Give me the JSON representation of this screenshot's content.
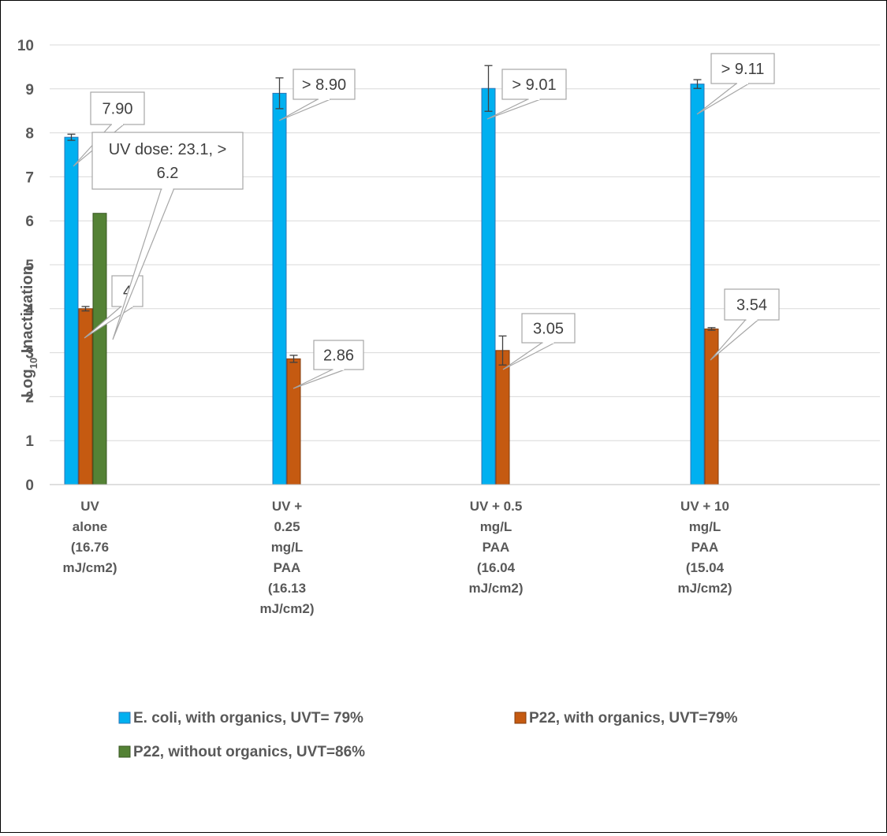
{
  "chart_data": {
    "type": "bar",
    "ylabel_prefix": "Log",
    "ylabel_sub": "10",
    "ylabel_suffix": " Inactivation",
    "ylim": [
      0,
      10
    ],
    "yticks": [
      "0",
      "1",
      "2",
      "3",
      "4",
      "5",
      "6",
      "7",
      "8",
      "9",
      "10"
    ],
    "grid": true,
    "legend_position": "bottom",
    "categories": [
      [
        "UV",
        "alone",
        "(16.76",
        "mJ/cm2)"
      ],
      [
        "UV +",
        "0.25",
        "mg/L",
        "PAA",
        "(16.13",
        "mJ/cm2)"
      ],
      [
        "UV + 0.5",
        "mg/L",
        "PAA",
        "(16.04",
        "mJ/cm2)"
      ],
      [
        "UV + 10",
        "mg/L",
        "PAA",
        "(15.04",
        "mJ/cm2)"
      ]
    ],
    "series": [
      {
        "name": "E. coli, with organics, UVT= 79%",
        "color": "#00B0F0",
        "values": [
          7.9,
          8.9,
          9.01,
          9.11
        ],
        "errors": [
          0.07,
          0.35,
          0.52,
          0.1
        ],
        "labels": [
          [
            "7.90"
          ],
          [
            "> 8.90"
          ],
          [
            "> 9.01"
          ],
          [
            "> 9.11"
          ]
        ]
      },
      {
        "name": "P22, with organics, UVT=79%",
        "color": "#C55A11",
        "values": [
          4.0,
          2.86,
          3.05,
          3.54
        ],
        "errors": [
          0.05,
          0.08,
          0.33,
          0.03
        ],
        "labels": [
          [
            "4"
          ],
          [
            "2.86"
          ],
          [
            "3.05"
          ],
          [
            "3.54"
          ]
        ]
      },
      {
        "name": "P22, without organics, UVT=86%",
        "color": "#548235",
        "values": [
          6.17,
          null,
          null,
          null
        ],
        "errors": [
          null,
          null,
          null,
          null
        ],
        "labels": [
          [
            "UV dose: 23.1, >",
            "6.2"
          ],
          null,
          null,
          null
        ]
      }
    ]
  }
}
